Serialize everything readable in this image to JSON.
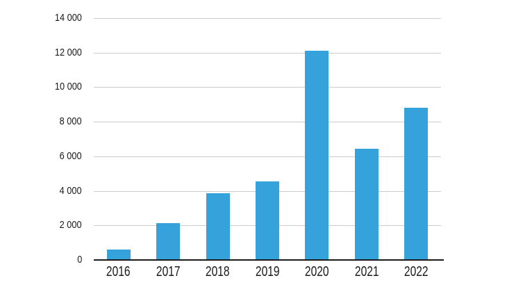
{
  "chart_data": {
    "type": "bar",
    "title": "",
    "xlabel": "",
    "ylabel": "",
    "categories": [
      "2016",
      "2017",
      "2018",
      "2019",
      "2020",
      "2021",
      "2022"
    ],
    "values": [
      600,
      2150,
      3850,
      4550,
      12100,
      6450,
      8800
    ],
    "ylim": [
      0,
      14000
    ],
    "y_tick_interval": 2000,
    "y_tick_labels": [
      "0",
      "2 000",
      "4 000",
      "6 000",
      "8 000",
      "10 000",
      "12 000",
      "14 000"
    ],
    "grid": true,
    "legend": false,
    "colors": {
      "bar": "#35a2db",
      "gridline": "#cccccc",
      "axis": "#1a1a1a",
      "text": "#1a1a1a",
      "background": "#ffffff"
    }
  }
}
